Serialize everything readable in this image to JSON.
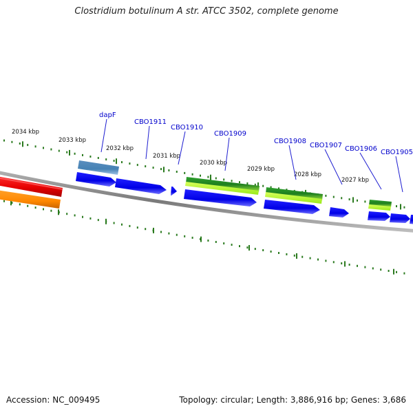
{
  "title": "Clostridium botulinum A str. ATCC 3502, complete genome",
  "footer": {
    "accession": "Accession: NC_009495",
    "summary": "Topology: circular; Length: 3,886,916 bp; Genes: 3,686"
  },
  "scale_labels": [
    "2034 kbp",
    "2033 kbp",
    "2032 kbp",
    "2031 kbp",
    "2030 kbp",
    "2029 kbp",
    "2028 kbp",
    "2027 kbp"
  ],
  "gene_labels": [
    "dapF",
    "CBO1911",
    "CBO1910",
    "CBO1909",
    "CBO1908",
    "CBO1907",
    "CBO1906",
    "CBO1905"
  ],
  "colors": {
    "genome_line": "#808080",
    "tick": "#2a7a1e",
    "gene_label": "#0000cc",
    "cds_forward_blue": "#0000ee",
    "red_feature": "#ee0000",
    "orange_feature": "#ff8800",
    "steelblue_feature": "#4682b4",
    "green_feature": "#228b22",
    "lightgreen_feature": "#adff2f"
  }
}
